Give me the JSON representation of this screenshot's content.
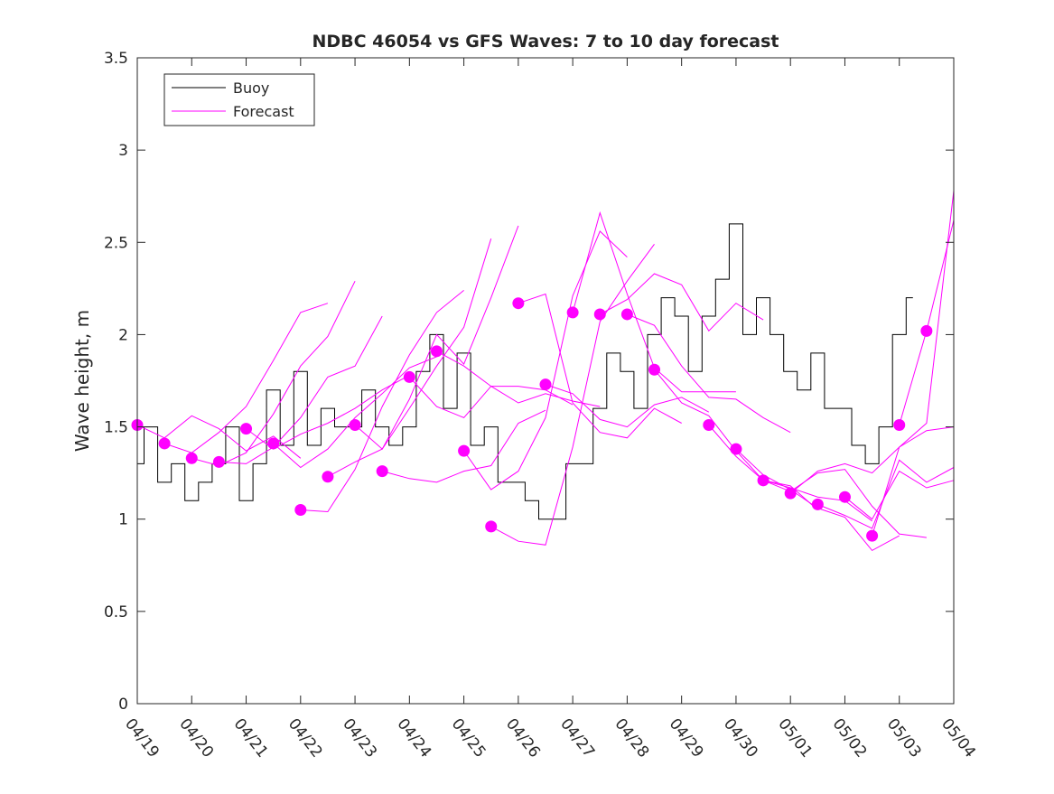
{
  "chart_data": {
    "type": "line",
    "title": "NDBC 46054 vs GFS Waves: 7 to 10 day forecast",
    "xlabel": "",
    "ylabel": "Wave height, m",
    "xlim": [
      "2024-04-19",
      "2024-05-04"
    ],
    "ylim": [
      0,
      3.5
    ],
    "y_ticks": [
      0,
      0.5,
      1,
      1.5,
      2,
      2.5,
      3,
      3.5
    ],
    "y_tick_labels": [
      "0",
      "0.5",
      "1",
      "1.5",
      "2",
      "2.5",
      "3",
      "3.5"
    ],
    "x_tick_labels": [
      "04/19",
      "04/20",
      "04/21",
      "04/22",
      "04/23",
      "04/24",
      "04/25",
      "04/26",
      "04/27",
      "04/28",
      "04/29",
      "04/30",
      "05/01",
      "05/02",
      "05/03",
      "05/04"
    ],
    "grid": false,
    "legend": {
      "position": "top-left",
      "entries": [
        "Buoy",
        "Forecast"
      ]
    },
    "colors": {
      "buoy": "#000000",
      "forecast": "#ff00ff",
      "axis": "#262626"
    },
    "series": [
      {
        "name": "Buoy",
        "color": "#000000",
        "x": [
          "04/19 00:00",
          "04/19 06:00",
          "04/19 12:00",
          "04/19 18:00",
          "04/20 00:00",
          "04/20 06:00",
          "04/20 12:00",
          "04/20 18:00",
          "04/21 00:00",
          "04/21 06:00",
          "04/21 12:00",
          "04/21 18:00",
          "04/22 00:00",
          "04/22 06:00",
          "04/22 12:00",
          "04/22 18:00",
          "04/23 00:00",
          "04/23 06:00",
          "04/23 12:00",
          "04/23 18:00",
          "04/24 00:00",
          "04/24 06:00",
          "04/24 12:00",
          "04/24 18:00",
          "04/25 00:00",
          "04/25 06:00",
          "04/25 12:00",
          "04/25 18:00",
          "04/26 00:00",
          "04/26 06:00",
          "04/26 12:00",
          "04/26 18:00",
          "04/27 00:00",
          "04/27 06:00",
          "04/27 12:00",
          "04/27 18:00",
          "04/28 00:00",
          "04/28 06:00",
          "04/28 12:00",
          "04/28 18:00",
          "04/29 00:00",
          "04/29 06:00",
          "04/29 12:00",
          "04/29 18:00",
          "04/30 00:00",
          "04/30 06:00",
          "04/30 12:00",
          "04/30 18:00",
          "05/01 00:00",
          "05/01 06:00",
          "05/01 12:00",
          "05/01 18:00",
          "05/02 00:00",
          "05/02 06:00",
          "05/02 12:00",
          "05/02 18:00",
          "05/03 00:00",
          "05/03 06:00"
        ],
        "y": [
          1.3,
          1.5,
          1.2,
          1.3,
          1.1,
          1.2,
          1.3,
          1.5,
          1.1,
          1.3,
          1.7,
          1.4,
          1.8,
          1.4,
          1.6,
          1.5,
          1.5,
          1.7,
          1.5,
          1.4,
          1.5,
          1.8,
          2.0,
          1.6,
          1.9,
          1.4,
          1.5,
          1.2,
          1.2,
          1.1,
          1.0,
          1.0,
          1.3,
          1.3,
          1.6,
          1.9,
          1.8,
          1.6,
          2.0,
          2.2,
          2.1,
          1.8,
          2.1,
          2.3,
          2.6,
          2.0,
          2.2,
          2.0,
          1.8,
          1.7,
          1.9,
          1.6,
          1.6,
          1.4,
          1.3,
          1.5,
          2.0,
          2.2
        ]
      },
      {
        "name": "Forecast",
        "color": "#ff00ff",
        "x": [
          "04/19 00:00",
          "04/19 12:00",
          "04/20 00:00",
          "04/20 12:00",
          "04/21 00:00",
          "04/21 12:00",
          "04/22 00:00"
        ],
        "y": [
          1.51,
          1.44,
          1.56,
          1.49,
          1.37,
          1.45,
          1.33
        ]
      },
      {
        "color": "#ff00ff",
        "x": [
          "04/19 12:00",
          "04/20 00:00",
          "04/20 12:00",
          "04/21 00:00",
          "04/21 12:00",
          "04/22 00:00",
          "04/22 12:00"
        ],
        "y": [
          1.41,
          1.36,
          1.47,
          1.61,
          1.86,
          2.12,
          2.17
        ]
      },
      {
        "color": "#ff00ff",
        "x": [
          "04/20 00:00",
          "04/20 12:00",
          "04/21 00:00",
          "04/21 12:00",
          "04/22 00:00",
          "04/22 12:00",
          "04/23 00:00"
        ],
        "y": [
          1.33,
          1.29,
          1.36,
          1.57,
          1.83,
          1.99,
          2.29
        ]
      },
      {
        "color": "#ff00ff",
        "x": [
          "04/20 12:00",
          "04/21 00:00",
          "04/21 12:00",
          "04/22 00:00",
          "04/22 12:00",
          "04/23 00:00",
          "04/23 12:00"
        ],
        "y": [
          1.31,
          1.3,
          1.39,
          1.55,
          1.77,
          1.83,
          2.1
        ]
      },
      {
        "color": "#ff00ff",
        "x": [
          "04/21 00:00",
          "04/21 12:00",
          "04/22 00:00",
          "04/22 12:00",
          "04/23 00:00",
          "04/23 12:00",
          "04/24 00:00"
        ],
        "y": [
          1.49,
          1.38,
          1.46,
          1.52,
          1.6,
          1.7,
          1.78
        ]
      },
      {
        "color": "#ff00ff",
        "x": [
          "04/21 12:00",
          "04/22 00:00",
          "04/22 12:00",
          "04/23 00:00",
          "04/23 12:00",
          "04/24 00:00",
          "04/24 12:00"
        ],
        "y": [
          1.41,
          1.28,
          1.38,
          1.55,
          1.68,
          1.82,
          1.88
        ]
      },
      {
        "color": "#ff00ff",
        "x": [
          "04/22 00:00",
          "04/22 12:00",
          "04/23 00:00",
          "04/23 12:00",
          "04/24 00:00",
          "04/24 12:00",
          "04/25 00:00"
        ],
        "y": [
          1.05,
          1.04,
          1.27,
          1.61,
          1.89,
          2.12,
          2.24
        ]
      },
      {
        "color": "#ff00ff",
        "x": [
          "04/22 12:00",
          "04/23 00:00",
          "04/23 12:00",
          "04/24 00:00",
          "04/24 12:00",
          "04/25 00:00",
          "04/25 12:00"
        ],
        "y": [
          1.23,
          1.31,
          1.38,
          1.6,
          1.83,
          2.04,
          2.52
        ]
      },
      {
        "color": "#ff00ff",
        "x": [
          "04/23 00:00",
          "04/23 12:00",
          "04/24 00:00",
          "04/24 12:00",
          "04/25 00:00",
          "04/25 12:00",
          "04/26 00:00"
        ],
        "y": [
          1.51,
          1.38,
          1.65,
          2.0,
          1.84,
          2.2,
          2.59
        ]
      },
      {
        "color": "#ff00ff",
        "x": [
          "04/23 12:00",
          "04/24 00:00",
          "04/24 12:00",
          "04/25 00:00",
          "04/25 12:00",
          "04/26 00:00",
          "04/26 12:00"
        ],
        "y": [
          1.26,
          1.22,
          1.2,
          1.26,
          1.29,
          1.52,
          1.59
        ]
      },
      {
        "color": "#ff00ff",
        "x": [
          "04/24 00:00",
          "04/24 12:00",
          "04/25 00:00",
          "04/25 12:00",
          "04/26 00:00",
          "04/26 12:00",
          "04/27 00:00"
        ],
        "y": [
          1.77,
          1.61,
          1.55,
          1.72,
          1.72,
          1.7,
          1.62
        ]
      },
      {
        "color": "#ff00ff",
        "x": [
          "04/24 12:00",
          "04/25 00:00",
          "04/25 12:00",
          "04/26 00:00",
          "04/26 12:00",
          "04/27 00:00",
          "04/27 12:00"
        ],
        "y": [
          1.91,
          1.83,
          1.72,
          1.63,
          1.68,
          1.64,
          1.61
        ]
      },
      {
        "color": "#ff00ff",
        "x": [
          "04/25 00:00",
          "04/25 12:00",
          "04/26 00:00",
          "04/26 12:00",
          "04/27 00:00",
          "04/27 12:00",
          "04/28 00:00"
        ],
        "y": [
          1.37,
          1.16,
          1.26,
          1.55,
          2.21,
          2.56,
          2.42
        ]
      },
      {
        "color": "#ff00ff",
        "x": [
          "04/25 12:00",
          "04/26 00:00",
          "04/26 12:00",
          "04/27 00:00",
          "04/27 12:00",
          "04/28 00:00",
          "04/28 12:00"
        ],
        "y": [
          0.96,
          0.88,
          0.86,
          1.39,
          2.07,
          2.29,
          2.49
        ]
      },
      {
        "color": "#ff00ff",
        "x": [
          "04/26 00:00",
          "04/26 12:00",
          "04/27 00:00",
          "04/27 12:00",
          "04/28 00:00",
          "04/28 12:00",
          "04/29 00:00"
        ],
        "y": [
          2.17,
          2.22,
          1.63,
          1.47,
          1.44,
          1.6,
          1.52
        ]
      },
      {
        "color": "#ff00ff",
        "x": [
          "04/26 12:00",
          "04/27 00:00",
          "04/27 12:00",
          "04/28 00:00",
          "04/28 12:00",
          "04/29 00:00",
          "04/29 12:00"
        ],
        "y": [
          1.73,
          1.68,
          1.54,
          1.5,
          1.62,
          1.66,
          1.58
        ]
      },
      {
        "color": "#ff00ff",
        "x": [
          "04/27 00:00",
          "04/27 12:00",
          "04/28 00:00",
          "04/28 12:00",
          "04/29 00:00",
          "04/29 12:00",
          "04/30 00:00"
        ],
        "y": [
          2.12,
          2.66,
          2.22,
          1.82,
          1.69,
          1.69,
          1.69
        ]
      },
      {
        "color": "#ff00ff",
        "x": [
          "04/27 12:00",
          "04/28 00:00",
          "04/28 12:00",
          "04/29 00:00",
          "04/29 12:00",
          "04/30 00:00",
          "04/30 12:00"
        ],
        "y": [
          2.11,
          2.19,
          2.33,
          2.27,
          2.02,
          2.17,
          2.08
        ]
      },
      {
        "color": "#ff00ff",
        "x": [
          "04/28 00:00",
          "04/28 12:00",
          "04/29 00:00",
          "04/29 12:00",
          "04/30 00:00",
          "04/30 12:00",
          "05/01 00:00"
        ],
        "y": [
          2.11,
          2.05,
          1.83,
          1.66,
          1.65,
          1.55,
          1.47
        ]
      },
      {
        "color": "#ff00ff",
        "x": [
          "04/28 12:00",
          "04/29 00:00",
          "04/29 12:00",
          "04/30 00:00",
          "04/30 12:00",
          "05/01 00:00",
          "05/01 12:00"
        ],
        "y": [
          1.81,
          1.63,
          1.56,
          1.37,
          1.21,
          1.18,
          1.05
        ]
      },
      {
        "color": "#ff00ff",
        "x": [
          "04/29 12:00",
          "04/30 00:00",
          "04/30 12:00",
          "05/01 00:00",
          "05/01 12:00",
          "05/02 00:00",
          "05/02 12:00"
        ],
        "y": [
          1.51,
          1.34,
          1.21,
          1.17,
          1.12,
          1.1,
          0.99
        ]
      },
      {
        "color": "#ff00ff",
        "x": [
          "04/30 00:00",
          "04/30 12:00",
          "05/01 00:00",
          "05/01 12:00",
          "05/02 00:00",
          "05/02 12:00",
          "05/03 00:00"
        ],
        "y": [
          1.38,
          1.24,
          1.16,
          1.06,
          1.01,
          0.83,
          0.91
        ]
      },
      {
        "color": "#ff00ff",
        "x": [
          "04/30 12:00",
          "05/01 00:00",
          "05/01 12:00",
          "05/02 00:00",
          "05/02 12:00",
          "05/03 00:00",
          "05/03 12:00"
        ],
        "y": [
          1.21,
          1.15,
          1.25,
          1.27,
          1.07,
          0.92,
          0.9
        ]
      },
      {
        "color": "#ff00ff",
        "x": [
          "05/01 00:00",
          "05/01 12:00",
          "05/02 00:00",
          "05/02 12:00",
          "05/03 00:00",
          "05/03 12:00",
          "05/04 00:00"
        ],
        "y": [
          1.14,
          1.26,
          1.3,
          1.25,
          1.39,
          1.48,
          1.5
        ]
      },
      {
        "color": "#ff00ff",
        "x": [
          "05/01 12:00",
          "05/02 00:00",
          "05/02 12:00",
          "05/03 00:00",
          "05/03 12:00",
          "05/04 00:00"
        ],
        "y": [
          1.08,
          1.02,
          0.95,
          1.32,
          1.2,
          1.28
        ]
      },
      {
        "color": "#ff00ff",
        "x": [
          "05/02 00:00",
          "05/02 12:00",
          "05/03 00:00",
          "05/03 12:00",
          "05/04 00:00"
        ],
        "y": [
          1.12,
          1.0,
          1.26,
          1.17,
          1.21
        ]
      },
      {
        "color": "#ff00ff",
        "x": [
          "05/02 12:00",
          "05/03 00:00",
          "05/03 12:00",
          "05/04 00:00"
        ],
        "y": [
          0.91,
          1.39,
          1.52,
          2.78
        ]
      },
      {
        "color": "#ff00ff",
        "x": [
          "05/03 00:00",
          "05/03 12:00",
          "05/04 00:00"
        ],
        "y": [
          1.51,
          2.02,
          2.62
        ]
      }
    ],
    "markers": {
      "color": "#ff00ff",
      "x": [
        "04/19 00:00",
        "04/19 12:00",
        "04/20 00:00",
        "04/20 12:00",
        "04/21 00:00",
        "04/21 12:00",
        "04/22 00:00",
        "04/22 12:00",
        "04/23 00:00",
        "04/23 12:00",
        "04/24 00:00",
        "04/24 12:00",
        "04/25 00:00",
        "04/25 12:00",
        "04/26 00:00",
        "04/26 12:00",
        "04/27 00:00",
        "04/27 12:00",
        "04/28 00:00",
        "04/28 12:00",
        "04/29 12:00",
        "04/30 00:00",
        "04/30 12:00",
        "05/01 00:00",
        "05/01 12:00",
        "05/02 00:00",
        "05/02 12:00",
        "05/03 00:00",
        "05/03 12:00"
      ],
      "y": [
        1.51,
        1.41,
        1.33,
        1.31,
        1.49,
        1.41,
        1.05,
        1.23,
        1.51,
        1.26,
        1.77,
        1.91,
        1.37,
        0.96,
        2.17,
        1.73,
        2.12,
        2.11,
        2.11,
        1.81,
        1.51,
        1.38,
        1.21,
        1.14,
        1.08,
        1.12,
        0.91,
        1.51,
        2.02
      ]
    }
  }
}
